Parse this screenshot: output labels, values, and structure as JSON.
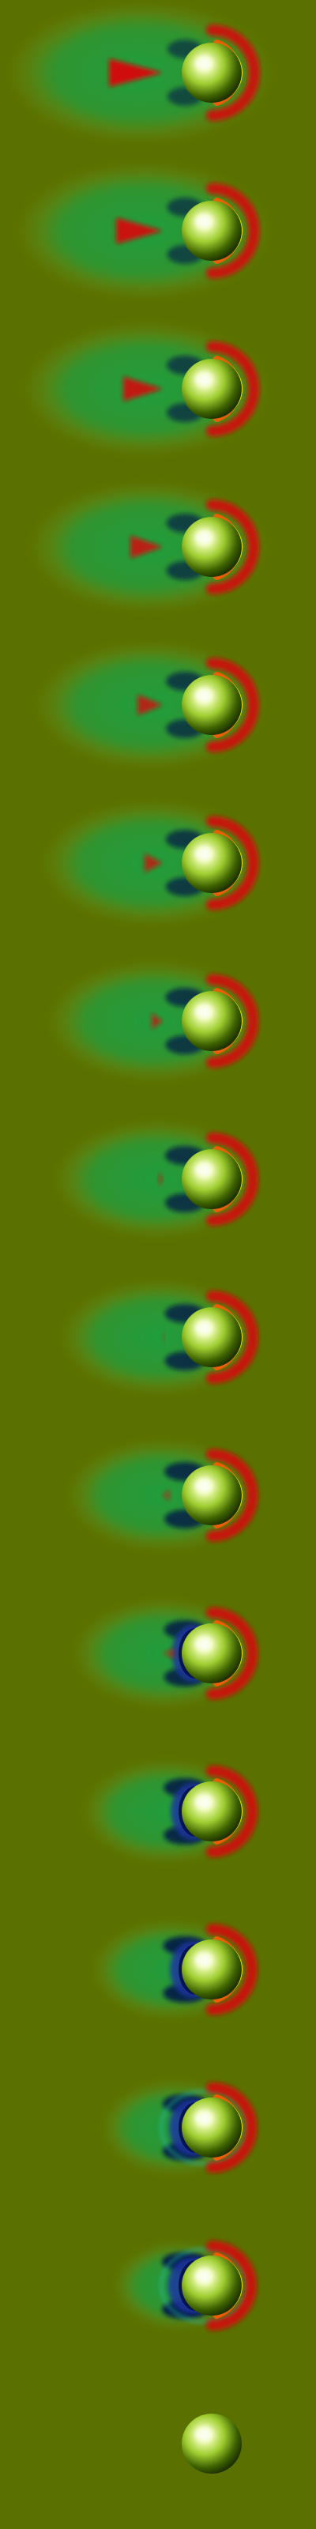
{
  "figure": {
    "background_color": "#5a7000",
    "sphere_colors": {
      "highlight": "#fbfff0",
      "mid": "#9fce30",
      "dark": "#0f1c00"
    },
    "field_colors": {
      "positive_strong": "#d0110a",
      "positive_mid": "#ff5a00",
      "positive_rim": "#ffe600",
      "negative_strong": "#06104a",
      "negative_mid": "#1a35a0",
      "halo": "#20a040",
      "halo_outer": "#7fa020",
      "teal_ring": "#2bb7a0"
    },
    "frame_count": 16,
    "frames": [
      {
        "frame": 1,
        "halo_extent": 1.0,
        "wake_strength": 1.0
      },
      {
        "frame": 2,
        "halo_extent": 0.94,
        "wake_strength": 0.9
      },
      {
        "frame": 3,
        "halo_extent": 0.9,
        "wake_strength": 0.8
      },
      {
        "frame": 4,
        "halo_extent": 0.86,
        "wake_strength": 0.7
      },
      {
        "frame": 5,
        "halo_extent": 0.82,
        "wake_strength": 0.6
      },
      {
        "frame": 6,
        "halo_extent": 0.78,
        "wake_strength": 0.5
      },
      {
        "frame": 7,
        "halo_extent": 0.74,
        "wake_strength": 0.4
      },
      {
        "frame": 8,
        "halo_extent": 0.7,
        "wake_strength": 0.3
      },
      {
        "frame": 9,
        "halo_extent": 0.66,
        "wake_strength": 0.22
      },
      {
        "frame": 10,
        "halo_extent": 0.62,
        "wake_strength": 0.15
      },
      {
        "frame": 11,
        "halo_extent": 0.58,
        "wake_strength": 0.08
      },
      {
        "frame": 12,
        "halo_extent": 0.52,
        "wake_strength": 0.0
      },
      {
        "frame": 13,
        "halo_extent": 0.46,
        "wake_strength": 0.0
      },
      {
        "frame": 14,
        "halo_extent": 0.4,
        "wake_strength": 0.0
      },
      {
        "frame": 15,
        "halo_extent": 0.32,
        "wake_strength": 0.0
      },
      {
        "frame": 16,
        "halo_extent": 0.0,
        "wake_strength": 0.0
      }
    ]
  }
}
